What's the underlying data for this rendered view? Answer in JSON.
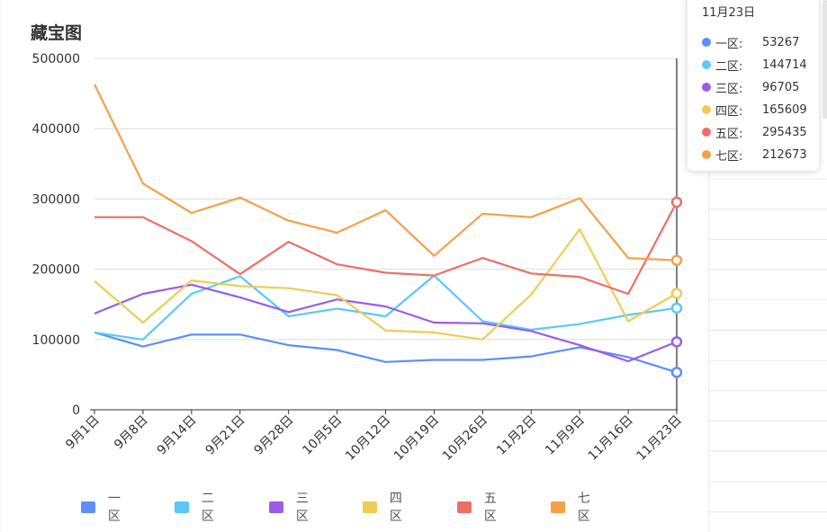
{
  "title": "藏宝图",
  "chart_data": {
    "type": "line",
    "title": "藏宝图",
    "categories": [
      "9月1日",
      "9月8日",
      "9月14日",
      "9月21日",
      "9月28日",
      "10月5日",
      "10月12日",
      "10月19日",
      "10月26日",
      "11月2日",
      "11月9日",
      "11月16日",
      "11月23日"
    ],
    "series": [
      {
        "name": "一区",
        "color": "#5b8ff9",
        "values": [
          110000,
          90000,
          107000,
          107000,
          92000,
          85000,
          68000,
          71000,
          71000,
          76000,
          89000,
          75000,
          53267
        ]
      },
      {
        "name": "二区",
        "color": "#5ac8fa",
        "values": [
          110000,
          100000,
          165000,
          190000,
          133000,
          144000,
          133000,
          191000,
          126000,
          114000,
          122000,
          135000,
          144714
        ]
      },
      {
        "name": "三区",
        "color": "#9b5de5",
        "values": [
          137000,
          165000,
          178000,
          160000,
          139000,
          157000,
          147000,
          124000,
          123000,
          112000,
          92000,
          69000,
          96705
        ]
      },
      {
        "name": "四区",
        "color": "#f0cc55",
        "values": [
          183000,
          124000,
          184000,
          176000,
          173000,
          163000,
          113000,
          110000,
          100000,
          164000,
          257000,
          126000,
          165609
        ]
      },
      {
        "name": "五区",
        "color": "#ec6f66",
        "values": [
          274000,
          274000,
          240000,
          193000,
          239000,
          207000,
          195000,
          191000,
          216000,
          194000,
          189000,
          165000,
          295435
        ]
      },
      {
        "name": "七区",
        "color": "#f5a047",
        "values": [
          463000,
          322000,
          280000,
          302000,
          269000,
          252000,
          284000,
          219000,
          279000,
          274000,
          301000,
          216000,
          212673
        ]
      }
    ],
    "ylim": [
      0,
      500000
    ],
    "yticks": [
      "0",
      "100000",
      "200000",
      "300000",
      "400000",
      "500000"
    ],
    "grid": true,
    "legend": "bottom"
  },
  "tooltip": {
    "title": "11月23日",
    "rows": [
      {
        "name": "一区:",
        "value": "53267",
        "color": "#5b8ff9"
      },
      {
        "name": "二区:",
        "value": "144714",
        "color": "#5ac8fa"
      },
      {
        "name": "三区:",
        "value": "96705",
        "color": "#9b5de5"
      },
      {
        "name": "四区:",
        "value": "165609",
        "color": "#f0cc55"
      },
      {
        "name": "五区:",
        "value": "295435",
        "color": "#ec6f66"
      },
      {
        "name": "七区:",
        "value": "212673",
        "color": "#f5a047"
      }
    ]
  }
}
